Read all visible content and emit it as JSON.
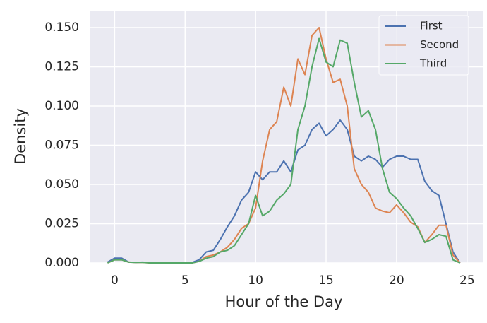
{
  "chart_data": {
    "type": "line",
    "x_label": "Hour of the Day",
    "y_label": "Density",
    "x": [
      -0.5,
      0,
      0.5,
      1,
      1.5,
      2,
      2.5,
      3,
      3.5,
      4,
      4.5,
      5,
      5.5,
      6,
      6.5,
      7,
      7.5,
      8,
      8.5,
      9,
      9.5,
      10,
      10.5,
      11,
      11.5,
      12,
      12.5,
      13,
      13.5,
      14,
      14.5,
      15,
      15.5,
      16,
      16.5,
      17,
      17.5,
      18,
      18.5,
      19,
      19.5,
      20,
      20.5,
      21,
      21.5,
      22,
      22.5,
      23,
      23.5,
      24,
      24.5
    ],
    "series": [
      {
        "name": "First",
        "color": "#4c72b0",
        "values": [
          0.0005,
          0.003,
          0.003,
          0.0005,
          0.0003,
          0.0005,
          0.0002,
          0,
          0,
          0,
          0,
          0,
          0.0003,
          0.002,
          0.007,
          0.008,
          0.015,
          0.023,
          0.03,
          0.04,
          0.045,
          0.058,
          0.053,
          0.058,
          0.058,
          0.065,
          0.058,
          0.072,
          0.075,
          0.085,
          0.089,
          0.081,
          0.085,
          0.091,
          0.085,
          0.068,
          0.065,
          0.068,
          0.066,
          0.061,
          0.066,
          0.068,
          0.068,
          0.066,
          0.066,
          0.052,
          0.046,
          0.043,
          0.025,
          0.007,
          0
        ]
      },
      {
        "name": "Second",
        "color": "#dd8452",
        "values": [
          0,
          0.002,
          0.002,
          0.0005,
          0.0003,
          0.0003,
          0,
          0,
          0,
          0,
          0,
          0,
          0,
          0.001,
          0.004,
          0.005,
          0.007,
          0.01,
          0.015,
          0.022,
          0.025,
          0.035,
          0.065,
          0.085,
          0.09,
          0.112,
          0.1,
          0.13,
          0.12,
          0.145,
          0.15,
          0.13,
          0.115,
          0.117,
          0.1,
          0.06,
          0.05,
          0.045,
          0.035,
          0.033,
          0.032,
          0.037,
          0.032,
          0.026,
          0.023,
          0.013,
          0.018,
          0.024,
          0.024,
          0.005,
          0
        ]
      },
      {
        "name": "Third",
        "color": "#55a868",
        "values": [
          0,
          0.002,
          0.002,
          0.0005,
          0.0003,
          0.0003,
          0,
          0,
          0,
          0,
          0,
          0,
          0,
          0.001,
          0.003,
          0.004,
          0.007,
          0.008,
          0.011,
          0.018,
          0.025,
          0.043,
          0.03,
          0.033,
          0.04,
          0.044,
          0.05,
          0.085,
          0.1,
          0.125,
          0.143,
          0.128,
          0.125,
          0.142,
          0.14,
          0.115,
          0.093,
          0.097,
          0.085,
          0.06,
          0.045,
          0.041,
          0.035,
          0.03,
          0.022,
          0.013,
          0.015,
          0.018,
          0.017,
          0.002,
          0
        ]
      }
    ],
    "xlim": [
      -1.77,
      26.16
    ],
    "ylim": [
      0,
      0.1608
    ],
    "xticks": [
      0,
      5,
      10,
      15,
      20,
      25
    ],
    "yticks": [
      {
        "value": 0,
        "label": "0.000"
      },
      {
        "value": 0.025,
        "label": "0.025"
      },
      {
        "value": 0.05,
        "label": "0.050"
      },
      {
        "value": 0.075,
        "label": "0.075"
      },
      {
        "value": 0.1,
        "label": "0.100"
      },
      {
        "value": 0.125,
        "label": "0.125"
      },
      {
        "value": 0.15,
        "label": "0.150"
      }
    ],
    "grid": true,
    "legend": "upper right"
  }
}
